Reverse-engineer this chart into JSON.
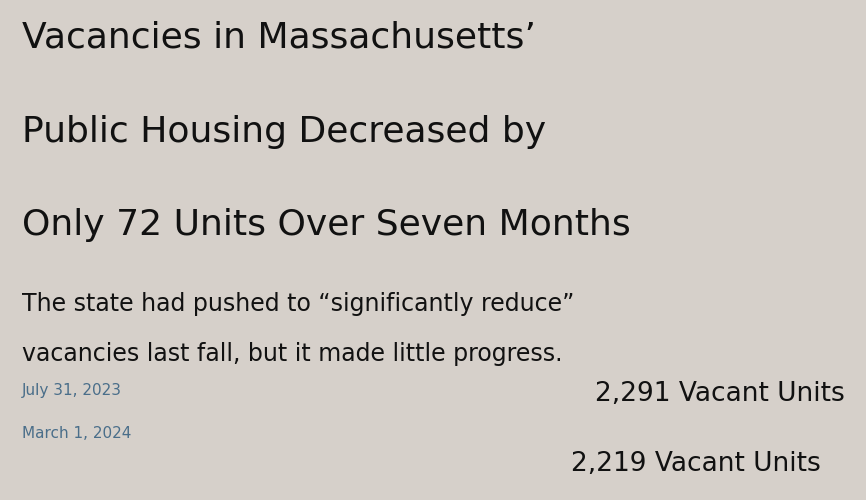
{
  "title_line1": "Vacancies in Massachusetts’",
  "title_line2": "Public Housing Decreased by",
  "title_line3": "Only 72 Units Over Seven Months",
  "subtitle_line1": "The state had pushed to “significantly reduce”",
  "subtitle_line2": "vacancies last fall, but it made little progress.",
  "bar1_label": "July 31, 2023",
  "bar1_value": "2,291 Vacant Units",
  "bar2_label": "March 1, 2024",
  "bar2_value": "2,219 Vacant Units",
  "bar_color": "#00FFFF",
  "background_color": "#D6D0CA",
  "text_color": "#111111",
  "label_color": "#4A6E8A",
  "title_fontsize": 26,
  "subtitle_fontsize": 17,
  "label_fontsize": 11,
  "value_fontsize": 19
}
